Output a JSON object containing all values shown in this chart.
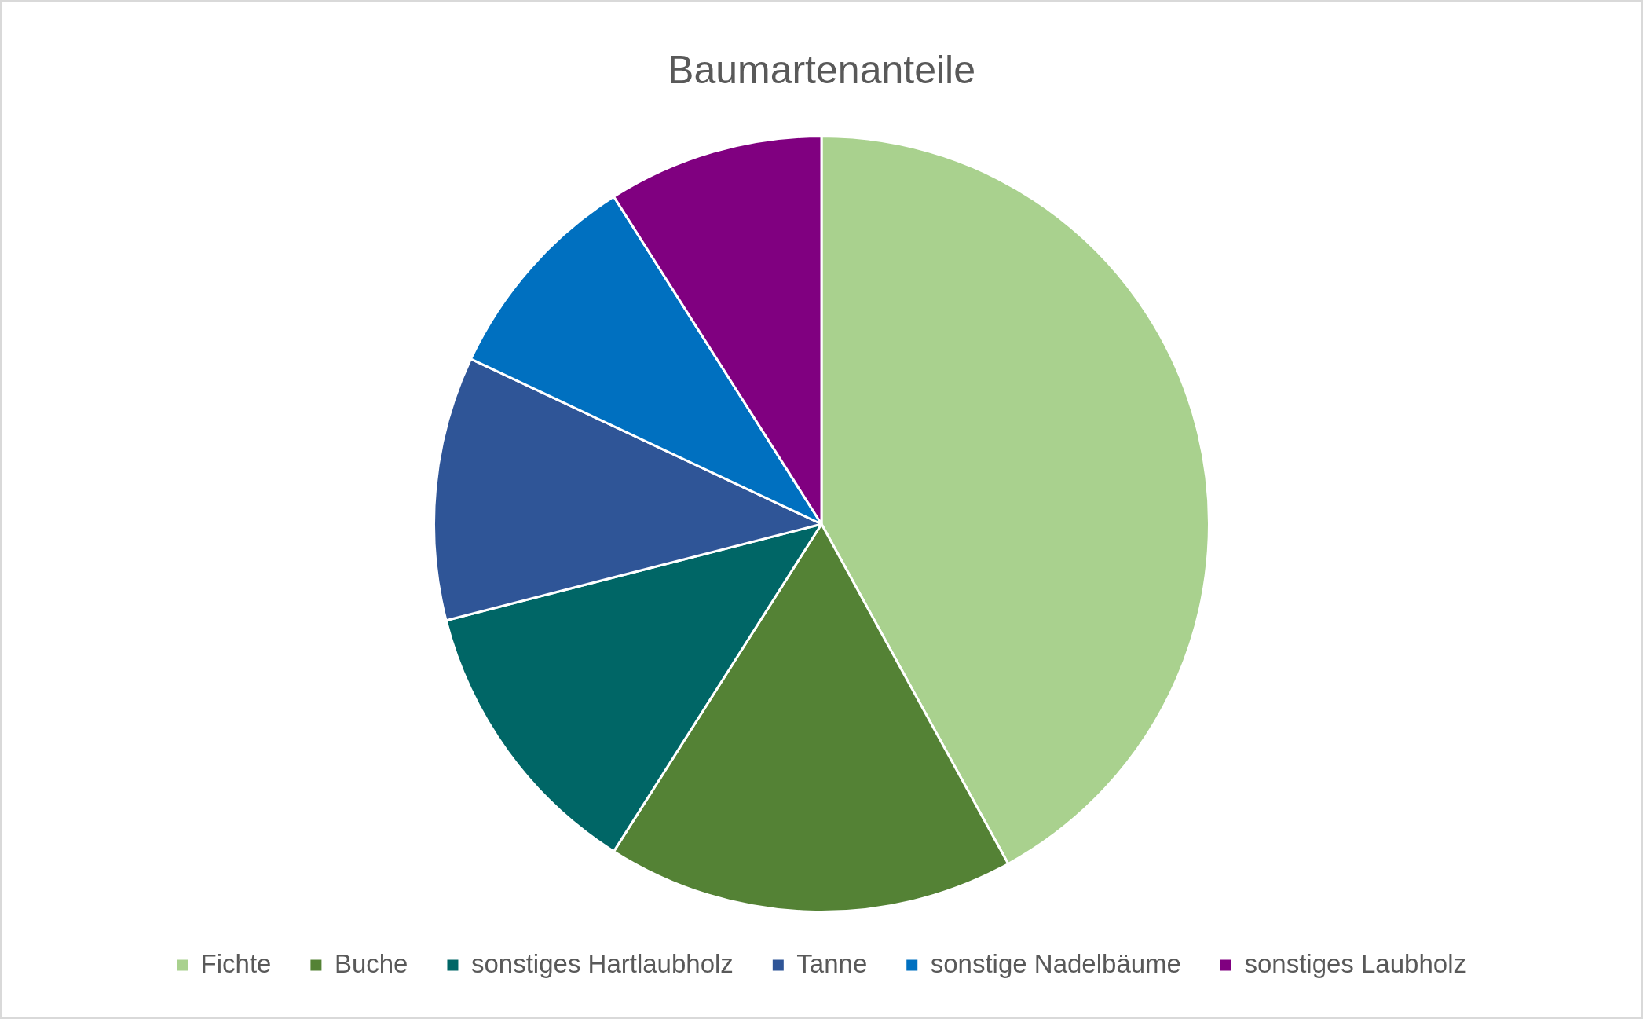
{
  "chart_data": {
    "type": "pie",
    "title": "Baumartenanteile",
    "categories": [
      "Fichte",
      "Buche",
      "sonstiges Hartlaubholz",
      "Tanne",
      "sonstige Nadelbäume",
      "sonstiges Laubholz"
    ],
    "values": [
      42,
      17,
      12,
      11,
      9,
      9
    ],
    "colors": [
      "#a9d18e",
      "#548235",
      "#006666",
      "#2f5597",
      "#0070c0",
      "#800080"
    ],
    "legend": "bottom"
  }
}
